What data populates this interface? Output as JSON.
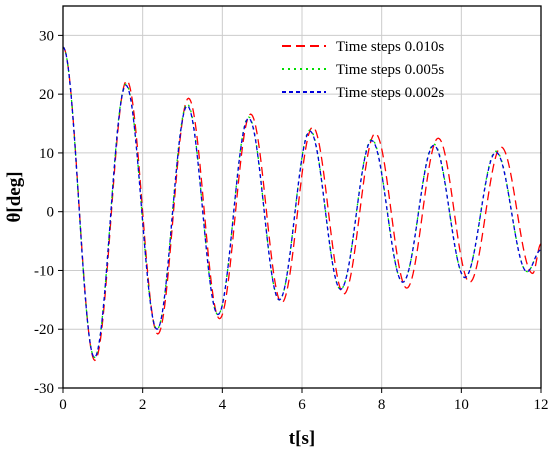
{
  "chart_data": {
    "type": "line",
    "title": "",
    "xlabel": "t[s]",
    "ylabel": "θ[deg]",
    "xlim": [
      0,
      12
    ],
    "ylim": [
      -30,
      35
    ],
    "xticks": [
      0,
      2,
      4,
      6,
      8,
      10,
      12
    ],
    "yticks": [
      -30,
      -20,
      -10,
      0,
      10,
      20,
      30
    ],
    "grid": true,
    "legend_position": "top-right",
    "series": [
      {
        "name": "Time steps 0.010s",
        "color": "#ff0000",
        "dash": "long-dash",
        "x": [
          0,
          0.8,
          1.6,
          2.38,
          3.15,
          3.93,
          4.71,
          5.49,
          6.27,
          7.05,
          7.84,
          8.63,
          9.42,
          10.21,
          11.0,
          11.79,
          12.0
        ],
        "y": [
          28,
          -25.3,
          22.3,
          -20.8,
          19.3,
          -18.2,
          16.6,
          -15.5,
          14.4,
          -14.0,
          13.3,
          -13.0,
          12.5,
          -12.0,
          11.0,
          -10.5,
          -5.5
        ]
      },
      {
        "name": "Time steps 0.005s",
        "color": "#00dd00",
        "dash": "dotted",
        "x": [
          0,
          0.79,
          1.58,
          2.36,
          3.12,
          3.89,
          4.66,
          5.43,
          6.2,
          6.97,
          7.75,
          8.53,
          9.31,
          10.09,
          10.87,
          11.65,
          12.0
        ],
        "y": [
          28,
          -24.8,
          21.7,
          -20.0,
          18.3,
          -17.5,
          16.1,
          -15.0,
          13.9,
          -13.2,
          12.3,
          -12.0,
          11.5,
          -11.2,
          10.3,
          -10.2,
          -6.5
        ]
      },
      {
        "name": "Time steps 0.002s",
        "color": "#0000dd",
        "dash": "short-dash",
        "x": [
          0,
          0.79,
          1.58,
          2.36,
          3.12,
          3.89,
          4.66,
          5.43,
          6.2,
          6.97,
          7.75,
          8.53,
          9.31,
          10.09,
          10.87,
          11.65,
          12.0
        ],
        "y": [
          28,
          -24.8,
          21.5,
          -20.0,
          18.0,
          -17.5,
          15.9,
          -15.0,
          13.7,
          -13.2,
          12.1,
          -12.0,
          11.3,
          -11.2,
          10.1,
          -10.2,
          -6.5
        ]
      }
    ]
  }
}
